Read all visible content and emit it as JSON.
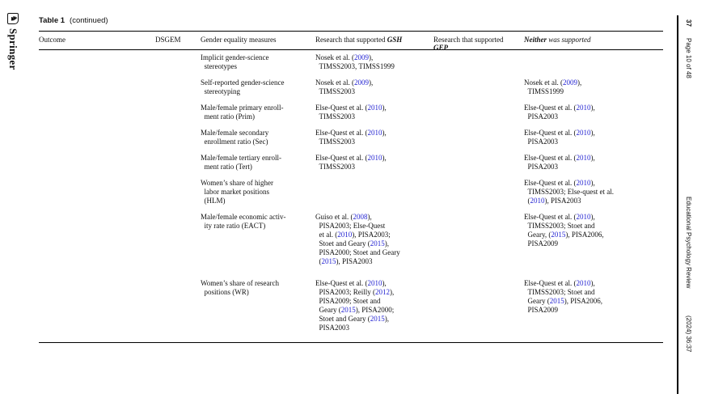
{
  "logo": {
    "name": "Springer",
    "mark": "♞"
  },
  "running_head": {
    "page_number": "37",
    "page_info": "Page 10 of 48",
    "journal": "Educational Psychology Review",
    "issue": "(2024) 36:37"
  },
  "caption": {
    "label": "Table 1",
    "suffix": "(continued)"
  },
  "colors": {
    "citation_link": "#2323d2"
  },
  "table": {
    "header": {
      "outcome": "Outcome",
      "dsgem": "DSGEM",
      "measures": "Gender equality measures",
      "gsh_prefix": "Research that supported ",
      "gsh_em": "GSH",
      "gep_prefix": "Research that supported ",
      "gep_em": "GEP",
      "neither_em": "Neither",
      "neither_suffix": " was supported"
    },
    "rows": [
      {
        "outcome": "",
        "dsgem": "",
        "measure": "Implicit gender-science\n  stereotypes",
        "gsh": "Nosek et al. (2009),\n  TIMSS2003, TIMSS1999",
        "gep": "",
        "neither": ""
      },
      {
        "outcome": "",
        "dsgem": "",
        "measure": "Self-reported gender-science\n  stereotyping",
        "gsh": "Nosek et al. (2009),\n  TIMSS2003",
        "gep": "",
        "neither": "Nosek et al. (2009),\n  TIMSS1999"
      },
      {
        "outcome": "",
        "dsgem": "",
        "measure": "Male/female primary enroll-\n  ment ratio (Prim)",
        "gsh": "Else-Quest et al. (2010),\n  TIMSS2003",
        "gep": "",
        "neither": "Else-Quest et al. (2010),\n  PISA2003"
      },
      {
        "outcome": "",
        "dsgem": "",
        "measure": "Male/female secondary\n  enrollment ratio (Sec)",
        "gsh": "Else-Quest et al. (2010),\n  TIMSS2003",
        "gep": "",
        "neither": "Else-Quest et al. (2010),\n  PISA2003"
      },
      {
        "outcome": "",
        "dsgem": "",
        "measure": "Male/female tertiary enroll-\n  ment ratio (Tert)",
        "gsh": "Else-Quest et al. (2010),\n  TIMSS2003",
        "gep": "",
        "neither": "Else-Quest et al. (2010),\n  PISA2003"
      },
      {
        "outcome": "",
        "dsgem": "",
        "measure": "Women’s share of higher\n  labor market positions\n  (HLM)",
        "gsh": "",
        "gep": "",
        "neither": "Else-Quest et al. (2010),\n  TIMSS2003; Else-quest et al.\n  (2010), PISA2003"
      },
      {
        "outcome": "",
        "dsgem": "",
        "measure": "Male/female economic activ-\n  ity rate ratio (EACT)",
        "gsh": "Guiso et al. (2008),\n  PISA2003; Else-Quest\n  et al. (2010), PISA2003;\n  Stoet and Geary (2015),\n  PISA2000; Stoet and Geary\n  (2015), PISA2003",
        "gep": "",
        "neither": "Else-Quest et al. (2010),\n  TIMSS2003; Stoet and\n  Geary, (2015), PISA2006,\n  PISA2009"
      },
      {
        "outcome": "",
        "dsgem": "",
        "measure": "Women’s share of research\n  positions (WR)",
        "gsh": "Else-Quest et al. (2010),\n  PISA2003; Reilly (2012),\n  PISA2009; Stoet and\n  Geary (2015), PISA2000;\n  Stoet and Geary (2015),\n  PISA2003",
        "gep": "",
        "neither": "Else-Quest et al. (2010),\n  TIMSS2003; Stoet and\n  Geary (2015), PISA2006,\n  PISA2009"
      }
    ]
  }
}
